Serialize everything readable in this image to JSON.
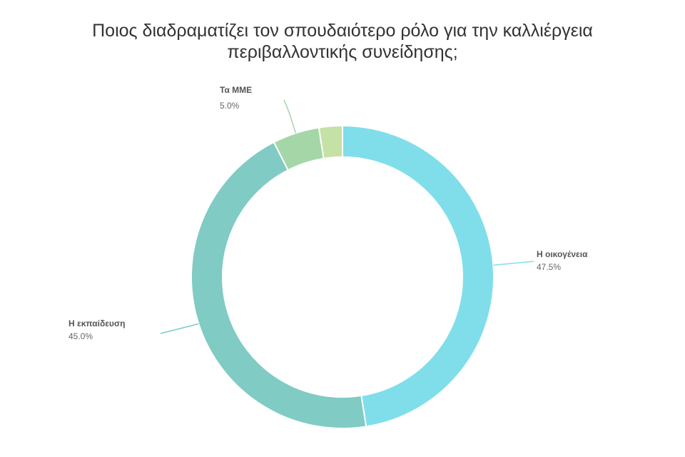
{
  "chart_data": {
    "type": "pie",
    "variant": "donut",
    "title_lines": [
      "Ποιος διαδραματίζει τον σπουδαιότερο ρόλο για την καλλιέργεια",
      "περιβαλλοντικής συνείδησης;"
    ],
    "slices": [
      {
        "name": "Η οικογένεια",
        "value": 47.5,
        "value_label": "47.5%",
        "color": "#80DEEA",
        "label_side": "right"
      },
      {
        "name": "Η εκπαίδευση",
        "value": 45.0,
        "value_label": "45.0%",
        "color": "#80CBC4",
        "label_side": "left"
      },
      {
        "name": "Τα ΜΜΕ",
        "value": 5.0,
        "value_label": "5.0%",
        "color": "#A5D6A7",
        "label_side": "top"
      },
      {
        "name": "",
        "value": 2.5,
        "value_label": "",
        "color": "#C5E1A5",
        "label_side": "none"
      }
    ],
    "legend": "none"
  }
}
